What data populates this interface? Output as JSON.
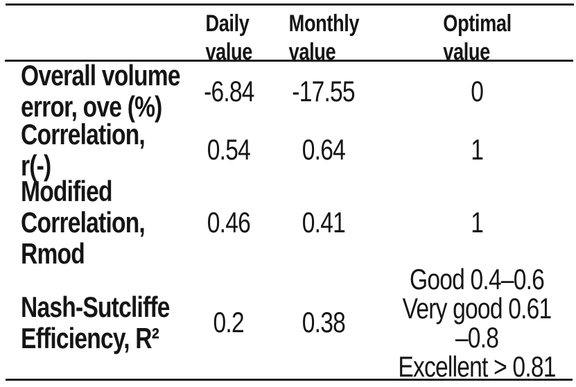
{
  "table": {
    "header": {
      "daily": "Daily\nvalue",
      "monthly": "Monthly\nvalue",
      "optimal": "Optimal\nvalue"
    },
    "rows": [
      {
        "metric": "Overall volume\nerror, ove (%)",
        "daily": "-6.84",
        "monthly": "-17.55",
        "optimal": "0"
      },
      {
        "metric": "Correlation,\nr(-)",
        "daily": "0.54",
        "monthly": "0.64",
        "optimal": "1"
      },
      {
        "metric": "Modified\nCorrelation,\nRmod",
        "daily": "0.46",
        "monthly": "0.41",
        "optimal": "1"
      },
      {
        "metric": "Nash-Sutcliffe\nEfficiency, R²",
        "daily": "0.2",
        "monthly": "0.38",
        "optimal": "Good 0.4–0.6\nVery good 0.61\n–0.8\nExcellent > 0.81"
      }
    ]
  },
  "colors": {
    "text": "#151515",
    "rule": "#1a1a1a",
    "background": "#ffffff"
  },
  "chart_data": {
    "type": "table",
    "columns": [
      "",
      "Daily value",
      "Monthly value",
      "Optimal value"
    ],
    "rows": [
      [
        "Overall volume error, ove (%)",
        "-6.84",
        "-17.55",
        "0"
      ],
      [
        "Correlation, r(-)",
        "0.54",
        "0.64",
        "1"
      ],
      [
        "Modified Correlation, Rmod",
        "0.46",
        "0.41",
        "1"
      ],
      [
        "Nash-Sutcliffe Efficiency, R²",
        "0.2",
        "0.38",
        "Good 0.4–0.6, Very good 0.61–0.8, Excellent > 0.81"
      ]
    ]
  }
}
